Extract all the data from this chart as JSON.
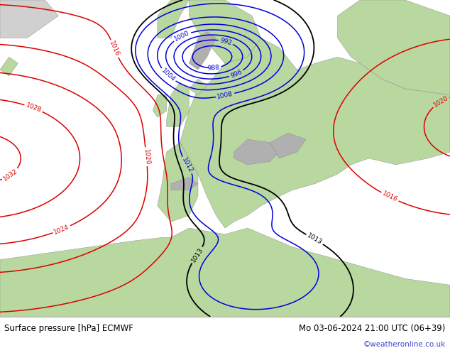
{
  "title_left": "Surface pressure [hPa] ECMWF",
  "title_right": "Mo 03-06-2024 21:00 UTC (06+39)",
  "watermark": "©weatheronline.co.uk",
  "ocean_color": "#e8e8e8",
  "land_color": "#b8d8a0",
  "mountain_color": "#b0b0b0",
  "text_color_black": "#000000",
  "text_color_blue": "#0000cc",
  "text_color_red": "#cc0000",
  "fig_width": 6.34,
  "fig_height": 4.9,
  "dpi": 100,
  "bottom_bar_color": "#ffffff",
  "watermark_color": "#4444cc",
  "blue": "#0000dd",
  "red": "#dd0000",
  "black": "#000000"
}
